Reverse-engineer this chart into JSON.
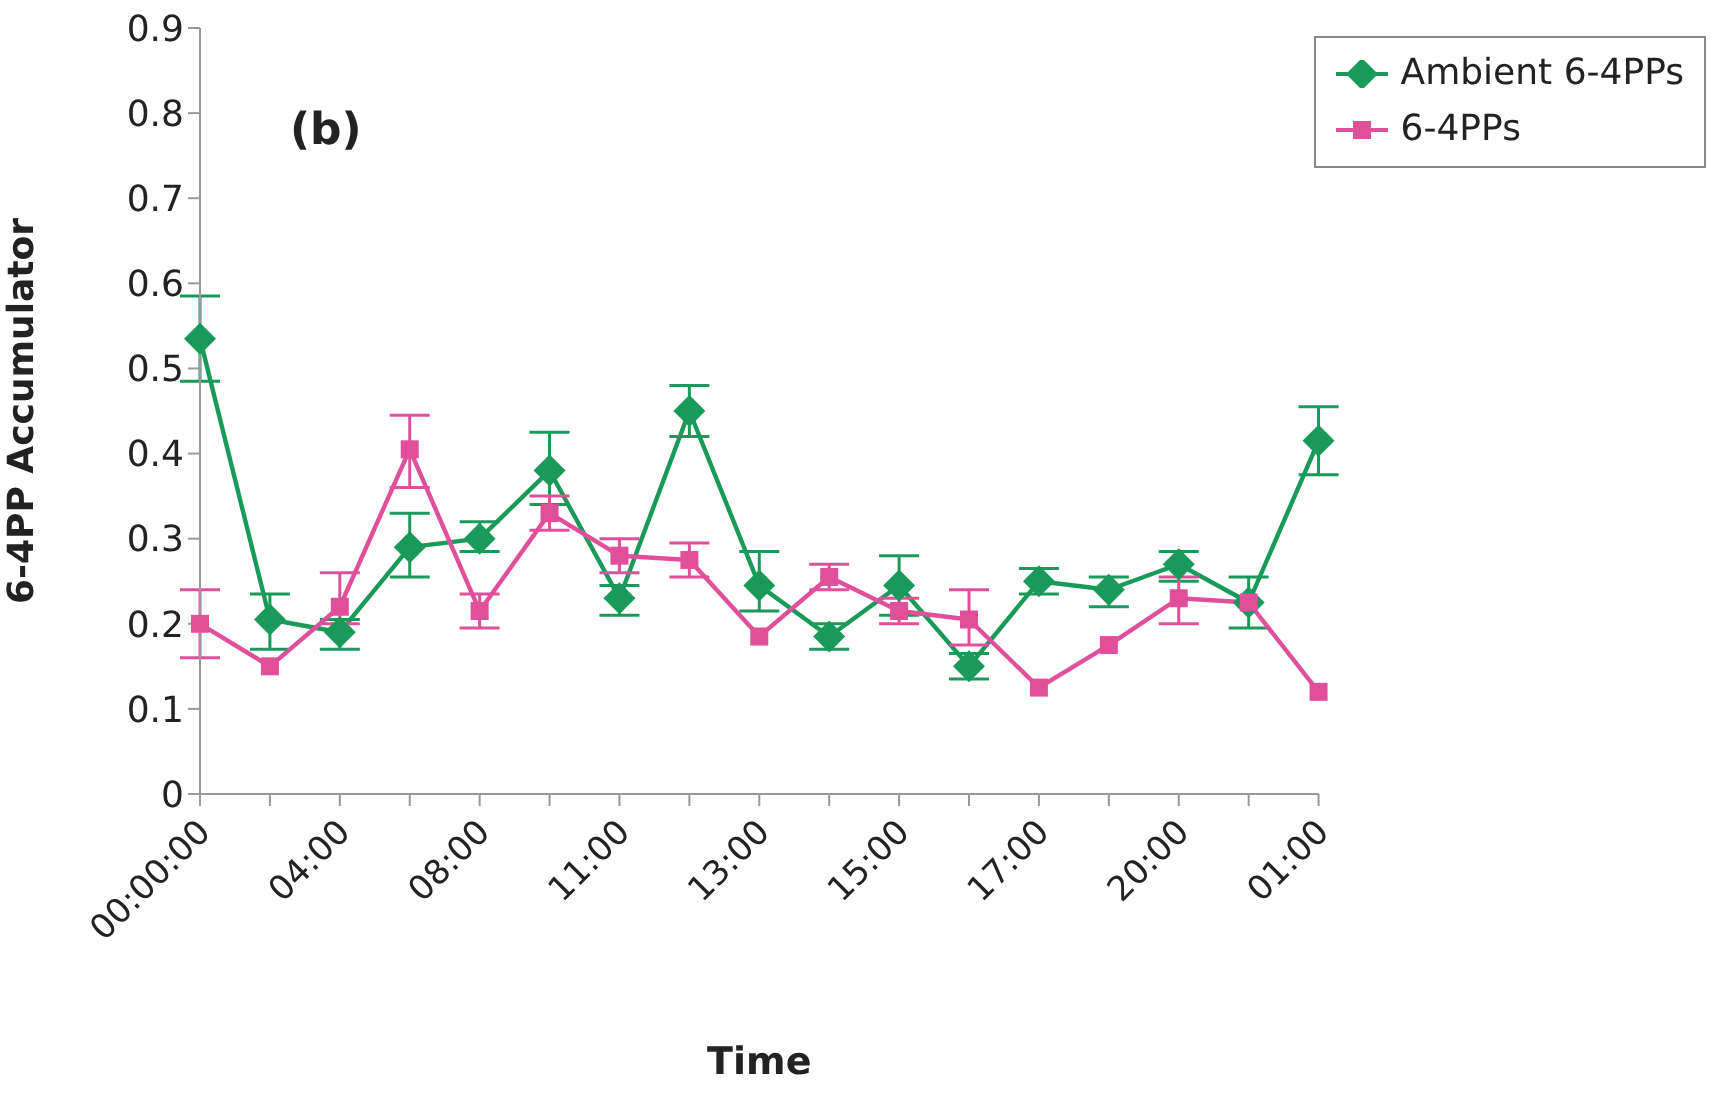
{
  "chart_data": {
    "type": "line",
    "xlabel": "Time",
    "ylabel": "6-4PP Accumulator",
    "annotations": [
      "(b)"
    ],
    "categories": [
      "00:00:00",
      null,
      "04:00",
      null,
      "08:00",
      null,
      "11:00",
      null,
      "13:00",
      null,
      "15:00",
      null,
      "17:00",
      null,
      "20:00",
      null,
      "01:00"
    ],
    "series": [
      {
        "name": "Ambient 6-4PPs",
        "color": "#1a9a5a",
        "marker": "diamond",
        "values": [
          0.535,
          0.205,
          0.19,
          0.29,
          0.3,
          0.38,
          0.23,
          0.45,
          0.245,
          0.185,
          0.245,
          0.15,
          0.25,
          0.24,
          0.27,
          0.225,
          0.415
        ],
        "errors": [
          [
            0.485,
            0.585
          ],
          [
            0.17,
            0.235
          ],
          [
            0.17,
            0.205
          ],
          [
            0.255,
            0.33
          ],
          [
            0.285,
            0.32
          ],
          [
            0.34,
            0.425
          ],
          [
            0.21,
            0.245
          ],
          [
            0.42,
            0.48
          ],
          [
            0.215,
            0.285
          ],
          [
            0.17,
            0.2
          ],
          [
            0.21,
            0.28
          ],
          [
            0.135,
            0.165
          ],
          [
            0.235,
            0.265
          ],
          [
            0.22,
            0.255
          ],
          [
            0.25,
            0.285
          ],
          [
            0.195,
            0.255
          ],
          [
            0.375,
            0.455
          ]
        ]
      },
      {
        "name": "6-4PPs",
        "color": "#e0509a",
        "marker": "square",
        "values": [
          0.2,
          0.15,
          0.22,
          0.405,
          0.215,
          0.33,
          0.28,
          0.275,
          0.185,
          0.255,
          0.215,
          0.205,
          0.125,
          0.175,
          0.23,
          0.225,
          0.12
        ],
        "errors": [
          [
            0.16,
            0.24
          ],
          null,
          [
            0.2,
            0.26
          ],
          [
            0.36,
            0.445
          ],
          [
            0.195,
            0.235
          ],
          [
            0.31,
            0.35
          ],
          [
            0.26,
            0.3
          ],
          [
            0.255,
            0.295
          ],
          null,
          [
            0.24,
            0.27
          ],
          [
            0.2,
            0.23
          ],
          [
            0.175,
            0.24
          ],
          null,
          null,
          [
            0.2,
            0.255
          ],
          null,
          null
        ]
      }
    ],
    "ylim": [
      0,
      0.9
    ],
    "yticks": [
      0,
      0.1,
      0.2,
      0.3,
      0.4,
      0.5,
      0.6,
      0.7,
      0.8,
      0.9
    ],
    "grid": false,
    "legend": "top right",
    "line_style": "solid"
  }
}
